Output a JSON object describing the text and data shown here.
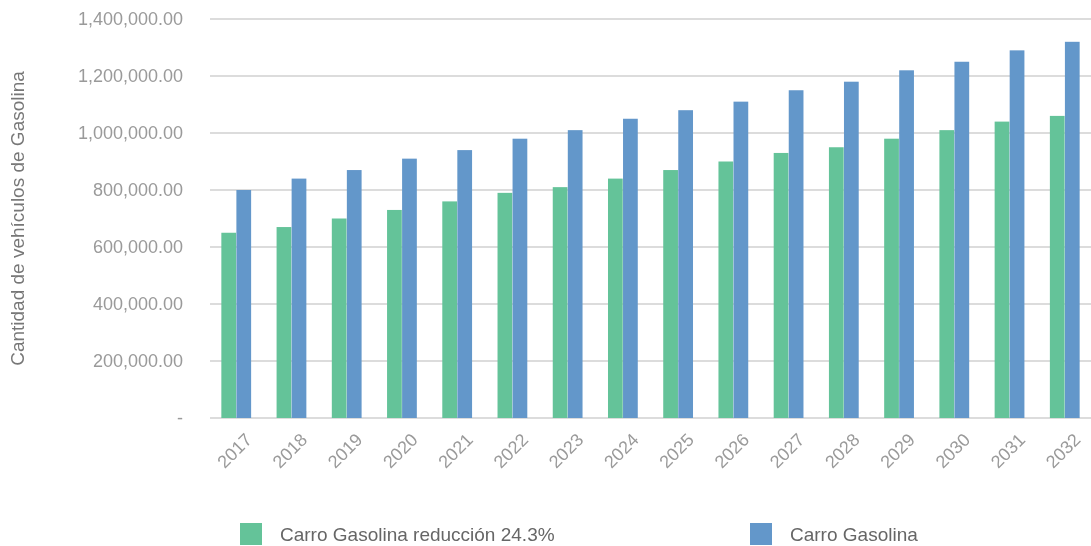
{
  "chart_data": {
    "type": "bar",
    "ylabel": "Cantidad de vehículos de Gasolina",
    "categories": [
      "2017",
      "2018",
      "2019",
      "2020",
      "2021",
      "2022",
      "2023",
      "2024",
      "2025",
      "2026",
      "2027",
      "2028",
      "2029",
      "2030",
      "2031",
      "2032"
    ],
    "series": [
      {
        "name": "Carro Gasolina reducción 24.3%",
        "color": "#64c399",
        "values": [
          650000,
          670000,
          700000,
          730000,
          760000,
          790000,
          810000,
          840000,
          870000,
          900000,
          930000,
          950000,
          980000,
          1010000,
          1040000,
          1060000
        ]
      },
      {
        "name": "Carro Gasolina",
        "color": "#6397ca",
        "values": [
          800000,
          840000,
          870000,
          910000,
          940000,
          980000,
          1010000,
          1050000,
          1080000,
          1110000,
          1150000,
          1180000,
          1220000,
          1250000,
          1290000,
          1320000
        ]
      }
    ],
    "ylim": [
      0,
      1400000
    ],
    "yticks": [
      {
        "value": 0,
        "label": "-"
      },
      {
        "value": 200000,
        "label": "200,000.00"
      },
      {
        "value": 400000,
        "label": "400,000.00"
      },
      {
        "value": 600000,
        "label": "600,000.00"
      },
      {
        "value": 800000,
        "label": "800,000.00"
      },
      {
        "value": 1000000,
        "label": "1,000,000.00"
      },
      {
        "value": 1200000,
        "label": "1,200,000.00"
      },
      {
        "value": 1400000,
        "label": "1,400,000.00"
      }
    ],
    "grid": "y",
    "legend": "bottom"
  }
}
